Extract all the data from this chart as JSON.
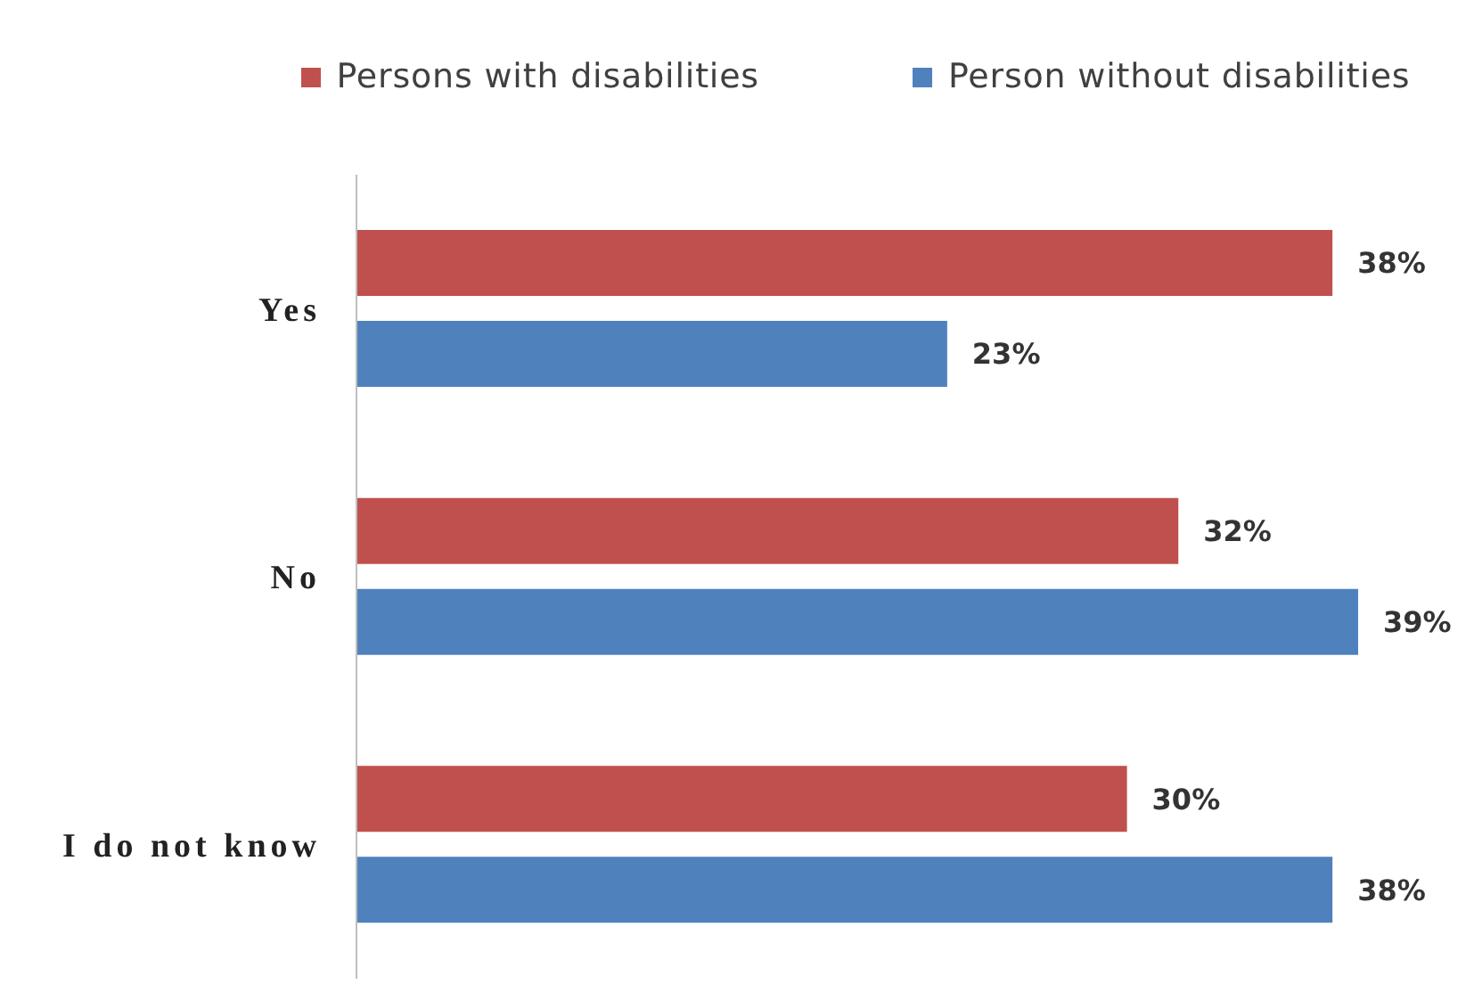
{
  "chart_data": {
    "type": "bar",
    "orientation": "horizontal",
    "categories": [
      "Yes",
      "No",
      "I do not know"
    ],
    "series": [
      {
        "name": "Persons with disabilities",
        "color": "#c0504d",
        "values": [
          38,
          32,
          30
        ],
        "value_labels": [
          "38%",
          "32%",
          "30%"
        ]
      },
      {
        "name": "Person without disabilities",
        "color": "#4f81bd",
        "values": [
          23,
          39,
          38
        ],
        "value_labels": [
          "23%",
          "39%",
          "38%"
        ]
      }
    ],
    "legend": "top"
  }
}
